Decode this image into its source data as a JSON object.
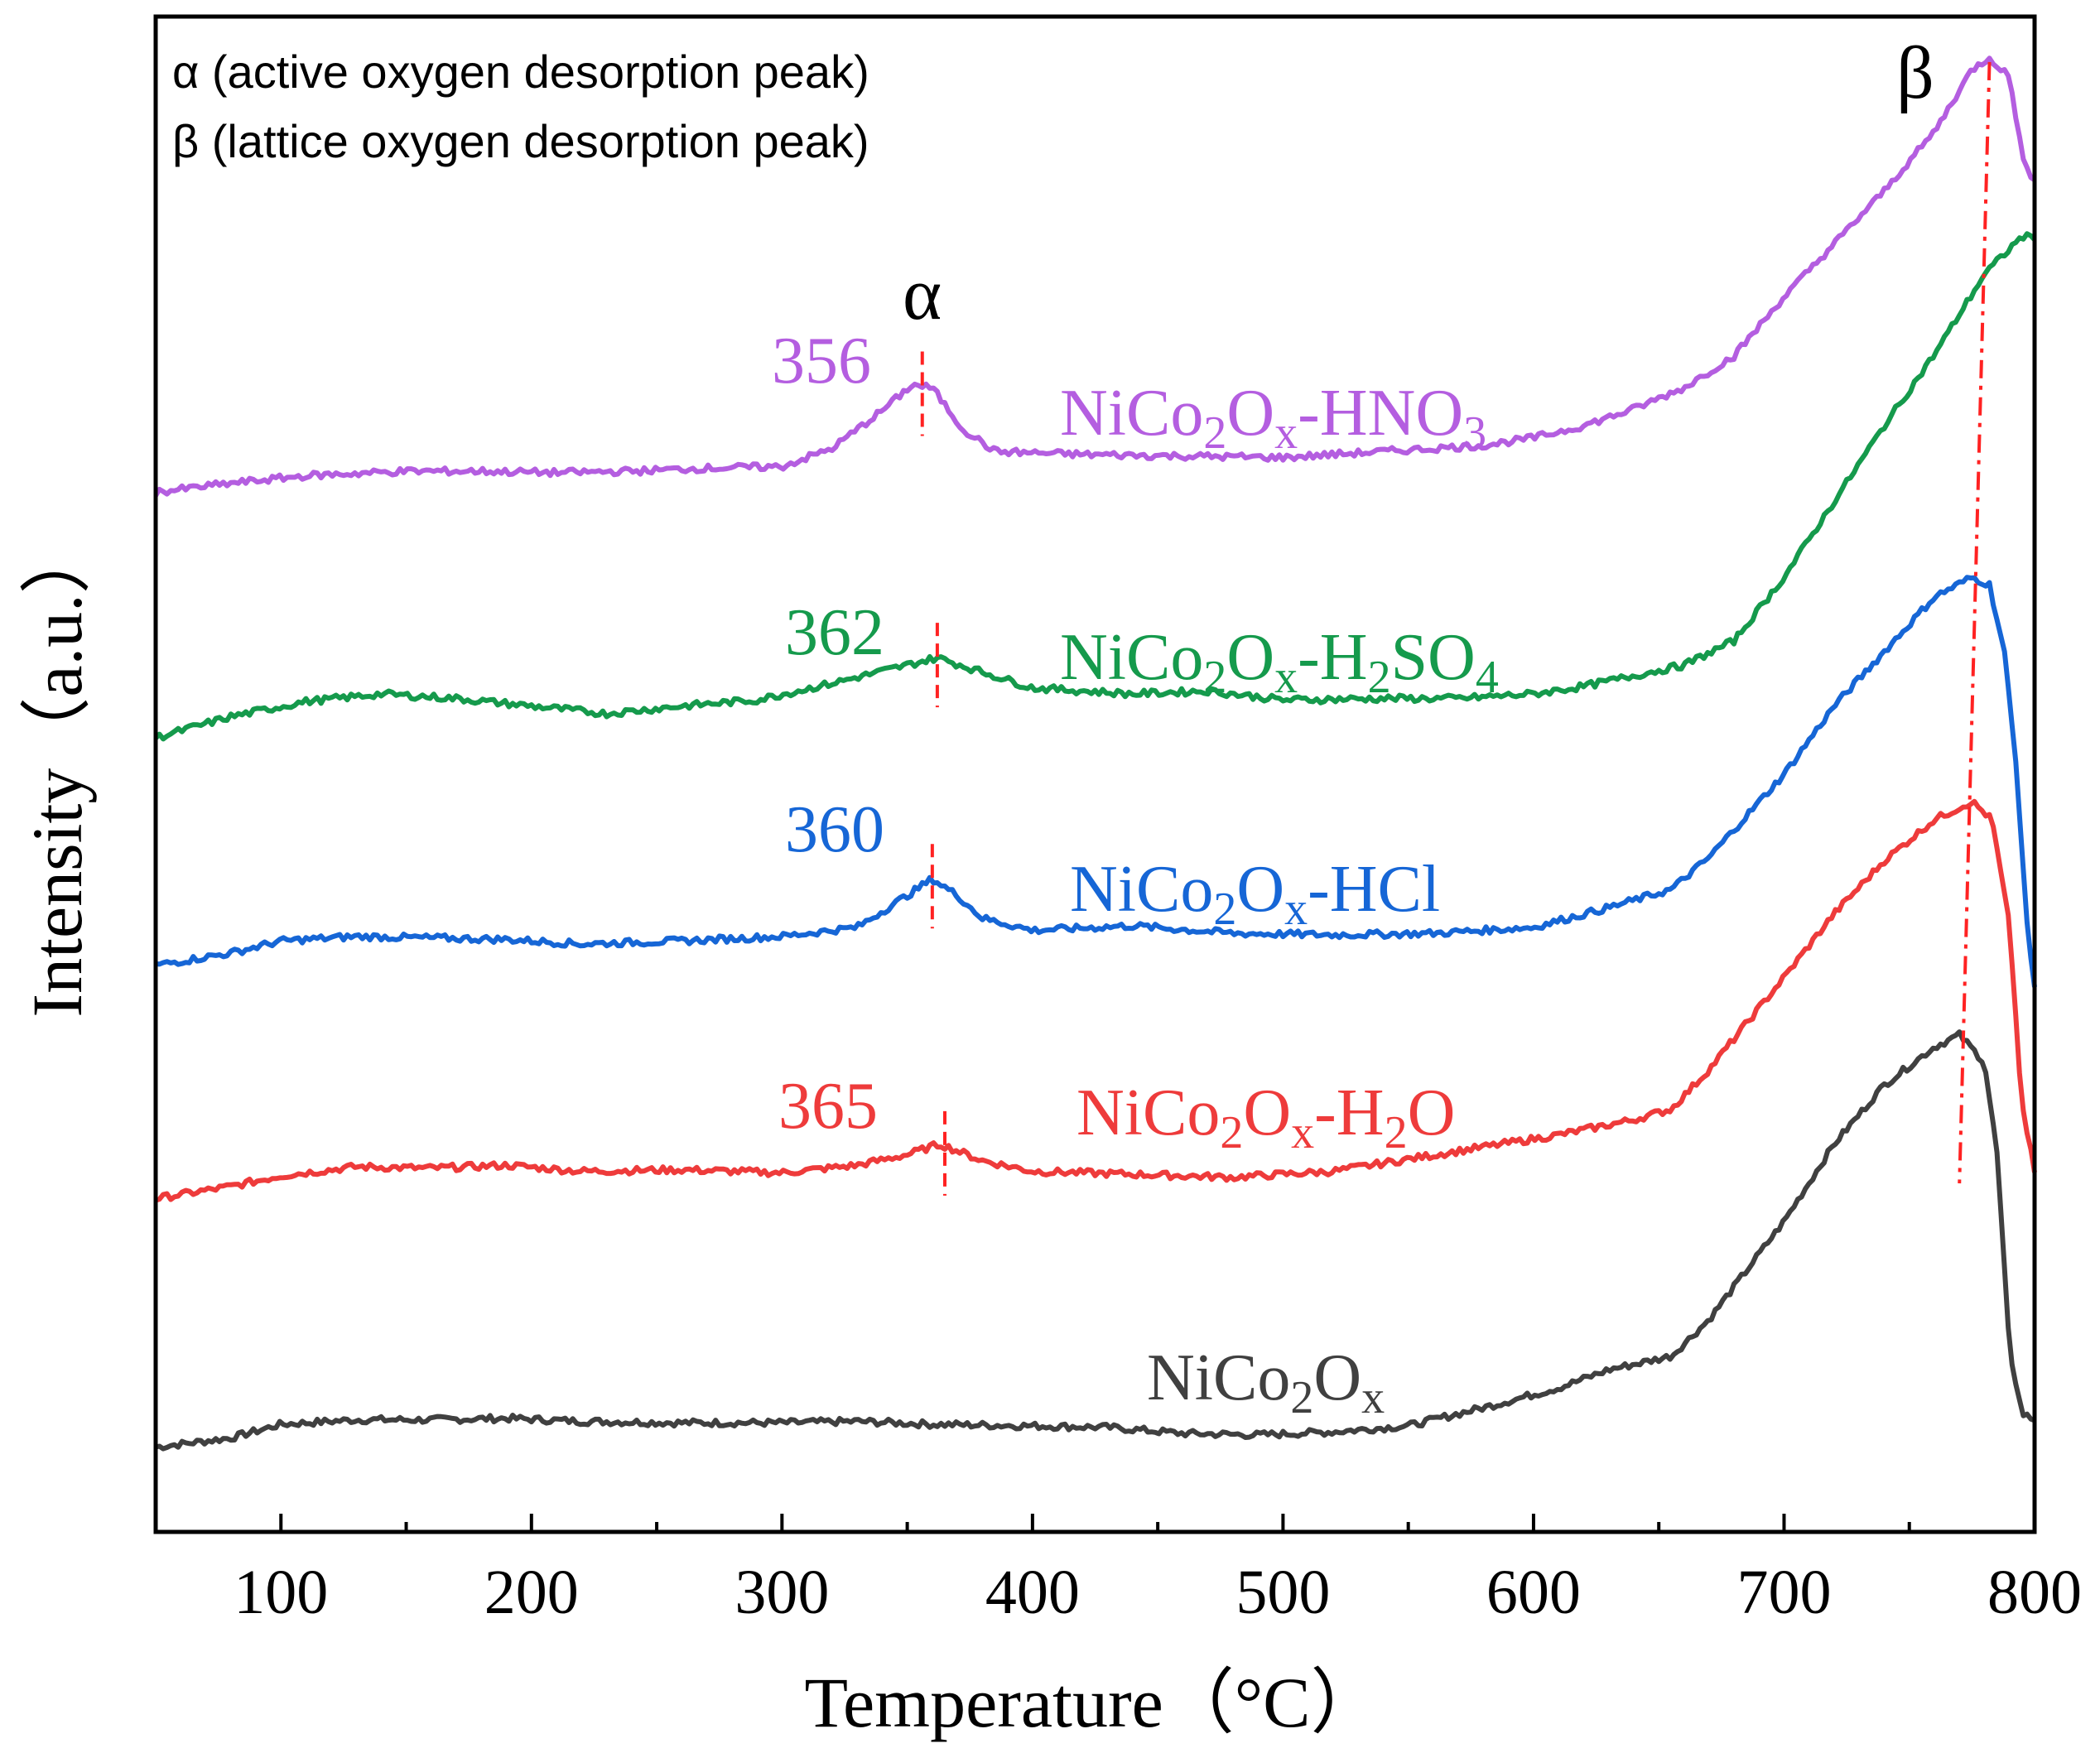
{
  "chart_data": {
    "type": "line",
    "xlabel": "Temperature（°C）",
    "ylabel": "Intensity（a.u.）",
    "xlim": [
      50,
      800
    ],
    "ylim": [
      0,
      100
    ],
    "y_ticks_shown": false,
    "x_ticks": [
      100,
      200,
      300,
      400,
      500,
      600,
      700,
      800
    ],
    "x_tick_labels": [
      "100",
      "200",
      "300",
      "400",
      "500",
      "600",
      "700",
      "800"
    ],
    "legend_notes": {
      "alpha": "α (active oxygen desorption peak)",
      "beta": "β (lattice oxygen desorption peak)"
    },
    "peak_symbols": {
      "alpha": "α",
      "beta": "β"
    },
    "alpha_line_top_temp": 356,
    "beta_line": {
      "top_temp": 782,
      "top_value": 97,
      "bottom_temp": 770,
      "bottom_value": 23
    },
    "series": [
      {
        "name": "NiCo2Ox",
        "label_main": "NiCo",
        "label_sub1": "2",
        "label_mid": "O",
        "label_sub2": "x",
        "label_tail": "",
        "label_sub3": "",
        "color": "#404040",
        "alpha_peak_label": "",
        "alpha_peak_temp": null,
        "points": [
          [
            50,
            5.6
          ],
          [
            80,
            6.2
          ],
          [
            100,
            7.1
          ],
          [
            130,
            7.4
          ],
          [
            160,
            7.4
          ],
          [
            190,
            7.5
          ],
          [
            220,
            7.3
          ],
          [
            260,
            7.2
          ],
          [
            300,
            7.2
          ],
          [
            330,
            7.3
          ],
          [
            360,
            7.1
          ],
          [
            400,
            7.0
          ],
          [
            430,
            6.9
          ],
          [
            460,
            6.5
          ],
          [
            490,
            6.4
          ],
          [
            520,
            6.6
          ],
          [
            550,
            7.0
          ],
          [
            580,
            8.2
          ],
          [
            610,
            9.5
          ],
          [
            630,
            10.7
          ],
          [
            655,
            11.6
          ],
          [
            670,
            14.0
          ],
          [
            700,
            20.5
          ],
          [
            720,
            25.6
          ],
          [
            740,
            29.5
          ],
          [
            760,
            32.0
          ],
          [
            770,
            32.8
          ],
          [
            780,
            31.0
          ],
          [
            785,
            25.0
          ],
          [
            790,
            12.0
          ],
          [
            795,
            7.8
          ],
          [
            800,
            7.4
          ]
        ]
      },
      {
        "name": "NiCo2Ox-H2O",
        "label_main": "NiCo",
        "label_sub1": "2",
        "label_mid": "O",
        "label_sub2": "x",
        "label_tail": "-H",
        "label_sub3": "2",
        "label_tail2": "O",
        "color": "#ee3b3b",
        "alpha_peak_label": "365",
        "alpha_peak_temp": 365,
        "points": [
          [
            50,
            22.0
          ],
          [
            80,
            22.8
          ],
          [
            100,
            23.5
          ],
          [
            130,
            24.1
          ],
          [
            160,
            24.0
          ],
          [
            190,
            24.2
          ],
          [
            220,
            23.8
          ],
          [
            260,
            23.9
          ],
          [
            300,
            23.7
          ],
          [
            330,
            24.2
          ],
          [
            350,
            24.9
          ],
          [
            363,
            25.6
          ],
          [
            380,
            24.5
          ],
          [
            400,
            23.8
          ],
          [
            440,
            23.6
          ],
          [
            480,
            23.4
          ],
          [
            520,
            23.8
          ],
          [
            550,
            24.6
          ],
          [
            580,
            25.4
          ],
          [
            610,
            26.2
          ],
          [
            640,
            27.2
          ],
          [
            655,
            27.9
          ],
          [
            670,
            30.5
          ],
          [
            700,
            36.6
          ],
          [
            720,
            40.8
          ],
          [
            740,
            44.3
          ],
          [
            760,
            47.0
          ],
          [
            775,
            48.2
          ],
          [
            783,
            47.0
          ],
          [
            790,
            40.0
          ],
          [
            795,
            28.0
          ],
          [
            800,
            23.8
          ]
        ]
      },
      {
        "name": "NiCo2Ox-HCl",
        "label_main": "NiCo",
        "label_sub1": "2",
        "label_mid": "O",
        "label_sub2": "x",
        "label_tail": "-HCl",
        "label_sub3": "",
        "label_tail2": "",
        "color": "#1666d6",
        "alpha_peak_label": "360",
        "alpha_peak_temp": 360,
        "points": [
          [
            50,
            37.4
          ],
          [
            80,
            38.2
          ],
          [
            100,
            39.0
          ],
          [
            130,
            39.3
          ],
          [
            160,
            39.2
          ],
          [
            190,
            39.1
          ],
          [
            220,
            38.8
          ],
          [
            260,
            39.0
          ],
          [
            300,
            39.3
          ],
          [
            330,
            39.9
          ],
          [
            350,
            42.0
          ],
          [
            360,
            43.1
          ],
          [
            370,
            42.0
          ],
          [
            380,
            40.5
          ],
          [
            400,
            39.7
          ],
          [
            440,
            40.0
          ],
          [
            480,
            39.5
          ],
          [
            520,
            39.4
          ],
          [
            560,
            39.5
          ],
          [
            600,
            39.9
          ],
          [
            630,
            41.2
          ],
          [
            655,
            42.4
          ],
          [
            670,
            44.5
          ],
          [
            700,
            50.0
          ],
          [
            720,
            54.5
          ],
          [
            740,
            58.1
          ],
          [
            760,
            61.7
          ],
          [
            775,
            63.0
          ],
          [
            782,
            62.5
          ],
          [
            788,
            58.0
          ],
          [
            793,
            50.0
          ],
          [
            797,
            40.0
          ],
          [
            800,
            36.0
          ]
        ]
      },
      {
        "name": "NiCo2Ox-H2SO4",
        "label_main": "NiCo",
        "label_sub1": "2",
        "label_mid": "O",
        "label_sub2": "x",
        "label_tail": "-H",
        "label_sub3": "2",
        "label_tail2": "SO",
        "label_sub4": "4",
        "color": "#159a4c",
        "alpha_peak_label": "362",
        "alpha_peak_temp": 362,
        "points": [
          [
            50,
            52.4
          ],
          [
            80,
            53.8
          ],
          [
            110,
            54.8
          ],
          [
            140,
            55.3
          ],
          [
            170,
            55.0
          ],
          [
            200,
            54.5
          ],
          [
            230,
            54.0
          ],
          [
            260,
            54.5
          ],
          [
            290,
            54.9
          ],
          [
            320,
            56.0
          ],
          [
            345,
            57.0
          ],
          [
            362,
            57.7
          ],
          [
            375,
            57.0
          ],
          [
            400,
            55.7
          ],
          [
            440,
            55.3
          ],
          [
            470,
            55.5
          ],
          [
            500,
            54.9
          ],
          [
            540,
            55.0
          ],
          [
            570,
            55.0
          ],
          [
            600,
            55.3
          ],
          [
            620,
            55.8
          ],
          [
            640,
            56.5
          ],
          [
            660,
            57.2
          ],
          [
            680,
            58.8
          ],
          [
            700,
            63.0
          ],
          [
            720,
            68.0
          ],
          [
            740,
            73.0
          ],
          [
            760,
            77.7
          ],
          [
            780,
            83.0
          ],
          [
            795,
            85.5
          ],
          [
            800,
            85.4
          ]
        ]
      },
      {
        "name": "NiCo2Ox-HNO3",
        "label_main": "NiCo",
        "label_sub1": "2",
        "label_mid": "O",
        "label_sub2": "x",
        "label_tail": "-HNO",
        "label_sub3": "3",
        "label_tail2": "",
        "color": "#b45ee0",
        "alpha_peak_label": "356",
        "alpha_peak_temp": 356,
        "points": [
          [
            50,
            68.6
          ],
          [
            80,
            69.2
          ],
          [
            110,
            69.7
          ],
          [
            150,
            70.0
          ],
          [
            180,
            70.0
          ],
          [
            210,
            69.9
          ],
          [
            240,
            70.0
          ],
          [
            270,
            70.2
          ],
          [
            300,
            70.3
          ],
          [
            320,
            71.5
          ],
          [
            340,
            74.0
          ],
          [
            352,
            75.7
          ],
          [
            360,
            75.5
          ],
          [
            372,
            72.8
          ],
          [
            385,
            71.3
          ],
          [
            420,
            71.1
          ],
          [
            460,
            71.0
          ],
          [
            500,
            70.9
          ],
          [
            540,
            71.3
          ],
          [
            580,
            71.7
          ],
          [
            600,
            72.2
          ],
          [
            620,
            73.0
          ],
          [
            640,
            74.1
          ],
          [
            660,
            75.5
          ],
          [
            680,
            77.6
          ],
          [
            700,
            81.5
          ],
          [
            720,
            85.0
          ],
          [
            740,
            88.5
          ],
          [
            760,
            92.4
          ],
          [
            775,
            96.5
          ],
          [
            782,
            97.3
          ],
          [
            790,
            96.0
          ],
          [
            796,
            90.0
          ],
          [
            800,
            89.3
          ]
        ]
      }
    ]
  }
}
